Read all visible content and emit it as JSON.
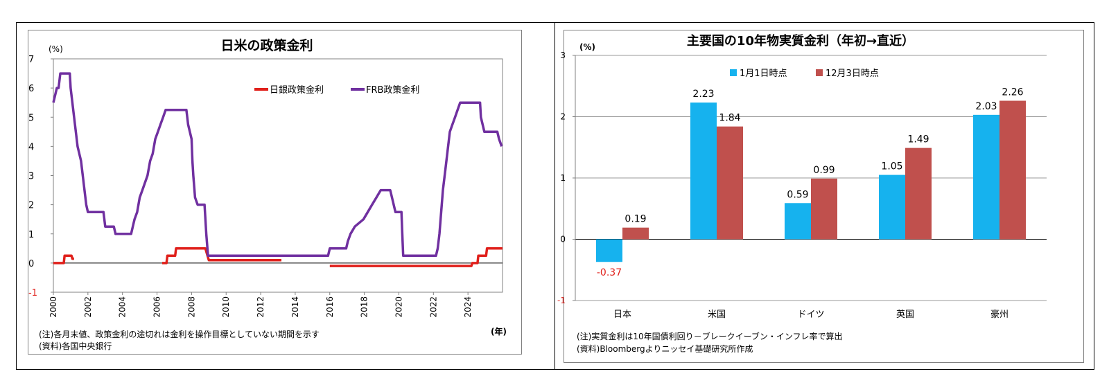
{
  "chart_data": [
    {
      "type": "line",
      "title": "日米の政策金利",
      "ylabel": "(%)",
      "xlabel": "(年)",
      "ylim": [
        -1,
        7
      ],
      "yticks": [
        "-1",
        "0",
        "1",
        "2",
        "3",
        "4",
        "5",
        "6",
        "7"
      ],
      "xlim": [
        2000,
        2026
      ],
      "xticks": [
        "2000",
        "2002",
        "2004",
        "2006",
        "2008",
        "2010",
        "2012",
        "2014",
        "2016",
        "2018",
        "2020",
        "2022",
        "2024"
      ],
      "grid": false,
      "legend_position": "top-right",
      "series": [
        {
          "name": "日銀政策金利",
          "color": "#e0201b",
          "segments": [
            [
              [
                2000.0,
                0.0
              ],
              [
                2000.6,
                0.0
              ],
              [
                2000.65,
                0.25
              ],
              [
                2001.05,
                0.25
              ],
              [
                2001.1,
                0.15
              ],
              [
                2001.2,
                0.15
              ]
            ],
            [
              [
                2006.3,
                0.0
              ],
              [
                2006.55,
                0.0
              ],
              [
                2006.6,
                0.25
              ],
              [
                2007.05,
                0.25
              ],
              [
                2007.1,
                0.5
              ],
              [
                2008.8,
                0.5
              ],
              [
                2008.9,
                0.3
              ],
              [
                2009.0,
                0.1
              ],
              [
                2013.2,
                0.1
              ]
            ],
            [
              [
                2016.0,
                -0.1
              ],
              [
                2024.2,
                -0.1
              ],
              [
                2024.25,
                0.0
              ],
              [
                2024.55,
                0.0
              ],
              [
                2024.6,
                0.25
              ],
              [
                2025.05,
                0.25
              ],
              [
                2025.1,
                0.5
              ],
              [
                2026.0,
                0.5
              ]
            ]
          ]
        },
        {
          "name": "FRB政策金利",
          "color": "#7030a0",
          "segments": [
            [
              [
                2000.0,
                5.5
              ],
              [
                2000.1,
                5.75
              ],
              [
                2000.2,
                6.0
              ],
              [
                2000.3,
                6.0
              ],
              [
                2000.4,
                6.5
              ],
              [
                2000.95,
                6.5
              ],
              [
                2001.0,
                6.0
              ],
              [
                2001.1,
                5.5
              ],
              [
                2001.2,
                5.0
              ],
              [
                2001.3,
                4.5
              ],
              [
                2001.4,
                4.0
              ],
              [
                2001.5,
                3.75
              ],
              [
                2001.6,
                3.5
              ],
              [
                2001.7,
                3.0
              ],
              [
                2001.8,
                2.5
              ],
              [
                2001.9,
                2.0
              ],
              [
                2002.0,
                1.75
              ],
              [
                2002.9,
                1.75
              ],
              [
                2003.0,
                1.25
              ],
              [
                2003.5,
                1.25
              ],
              [
                2003.6,
                1.0
              ],
              [
                2004.5,
                1.0
              ],
              [
                2004.6,
                1.25
              ],
              [
                2004.7,
                1.5
              ],
              [
                2004.85,
                1.75
              ],
              [
                2005.0,
                2.25
              ],
              [
                2005.15,
                2.5
              ],
              [
                2005.3,
                2.75
              ],
              [
                2005.45,
                3.0
              ],
              [
                2005.6,
                3.5
              ],
              [
                2005.75,
                3.75
              ],
              [
                2005.9,
                4.25
              ],
              [
                2006.05,
                4.5
              ],
              [
                2006.2,
                4.75
              ],
              [
                2006.35,
                5.0
              ],
              [
                2006.5,
                5.25
              ],
              [
                2007.7,
                5.25
              ],
              [
                2007.8,
                4.75
              ],
              [
                2007.9,
                4.5
              ],
              [
                2008.0,
                4.25
              ],
              [
                2008.05,
                3.5
              ],
              [
                2008.1,
                3.0
              ],
              [
                2008.2,
                2.25
              ],
              [
                2008.35,
                2.0
              ],
              [
                2008.75,
                2.0
              ],
              [
                2008.85,
                1.0
              ],
              [
                2008.95,
                0.25
              ],
              [
                2015.9,
                0.25
              ],
              [
                2016.0,
                0.5
              ],
              [
                2016.95,
                0.5
              ],
              [
                2017.05,
                0.75
              ],
              [
                2017.2,
                1.0
              ],
              [
                2017.45,
                1.25
              ],
              [
                2017.95,
                1.5
              ],
              [
                2018.2,
                1.75
              ],
              [
                2018.45,
                2.0
              ],
              [
                2018.7,
                2.25
              ],
              [
                2018.95,
                2.5
              ],
              [
                2019.5,
                2.5
              ],
              [
                2019.6,
                2.25
              ],
              [
                2019.7,
                2.0
              ],
              [
                2019.8,
                1.75
              ],
              [
                2020.15,
                1.75
              ],
              [
                2020.2,
                1.0
              ],
              [
                2020.25,
                0.25
              ],
              [
                2022.15,
                0.25
              ],
              [
                2022.25,
                0.5
              ],
              [
                2022.35,
                1.0
              ],
              [
                2022.45,
                1.75
              ],
              [
                2022.55,
                2.5
              ],
              [
                2022.7,
                3.25
              ],
              [
                2022.85,
                4.0
              ],
              [
                2022.95,
                4.5
              ],
              [
                2023.1,
                4.75
              ],
              [
                2023.25,
                5.0
              ],
              [
                2023.4,
                5.25
              ],
              [
                2023.55,
                5.5
              ],
              [
                2024.7,
                5.5
              ],
              [
                2024.75,
                5.0
              ],
              [
                2024.85,
                4.75
              ],
              [
                2024.95,
                4.5
              ],
              [
                2025.7,
                4.5
              ],
              [
                2025.8,
                4.25
              ],
              [
                2025.95,
                4.0
              ]
            ]
          ]
        }
      ],
      "notes": [
        "(注)各月末値、政策金利の途切れは金利を操作目標としていない期間を示す",
        "(資料)各国中央銀行"
      ]
    },
    {
      "type": "bar",
      "title": "主要国の10年物実質金利（年初→直近）",
      "ylabel": "(%)",
      "ylim": [
        -1,
        3
      ],
      "yticks": [
        "-1",
        "0",
        "1",
        "2",
        "3"
      ],
      "grid": true,
      "legend_position": "top-left",
      "categories": [
        "日本",
        "米国",
        "ドイツ",
        "英国",
        "豪州"
      ],
      "series": [
        {
          "name": "1月1日時点",
          "color": "#16b2ee",
          "values": [
            -0.37,
            2.23,
            0.59,
            1.05,
            2.03
          ],
          "labels": [
            "-0.37",
            "2.23",
            "0.59",
            "1.05",
            "2.03"
          ]
        },
        {
          "name": "12月3日時点",
          "color": "#c0504d",
          "values": [
            0.19,
            1.84,
            0.99,
            1.49,
            2.26
          ],
          "labels": [
            "0.19",
            "1.84",
            "0.99",
            "1.49",
            "2.26"
          ]
        }
      ],
      "negative_label_color": "#e0201b",
      "notes": [
        "(注)実質金利は10年国債利回り－ブレークイーブン・インフレ率で算出",
        "(資料)Bloombergよりニッセイ基礎研究所作成"
      ]
    }
  ]
}
